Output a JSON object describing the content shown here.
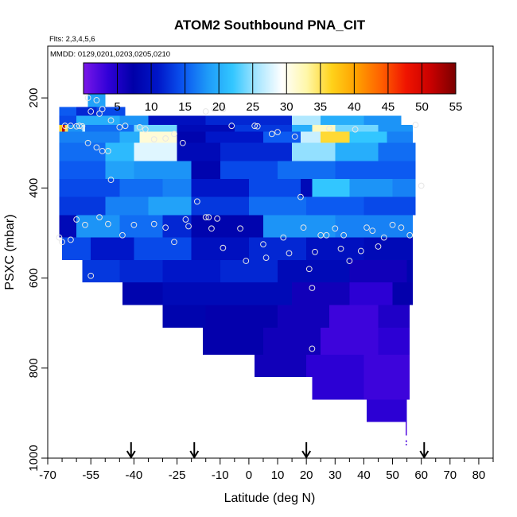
{
  "chart_data": {
    "type": "heatmap",
    "title": "ATOM2 Southbound PNA_CIT",
    "flights_note": "Flts: 2,3,4,5,6",
    "dates_note": "MMDD: 0129,0201,0203,0205,0210",
    "xlabel": "Latitude (deg N)",
    "ylabel": "PSXC (mbar)",
    "xlim": [
      -70,
      85
    ],
    "ylim": [
      1000,
      85
    ],
    "y_reversed": true,
    "x_major_ticks": [
      -70,
      -55,
      -40,
      -25,
      -10,
      0,
      10,
      20,
      30,
      40,
      50,
      60,
      70,
      80
    ],
    "x_minor_ticks": [
      -65,
      -60,
      -50,
      -45,
      -35,
      -30,
      -20,
      -15,
      -5,
      5,
      15,
      25,
      35,
      45,
      55,
      65,
      75,
      85
    ],
    "x_tick_labels": [
      "-70",
      "-55",
      "-40",
      "-25",
      "-10",
      "0",
      "10",
      "20",
      "30",
      "40",
      "50",
      "60",
      "70",
      "80"
    ],
    "y_ticks": [
      200,
      400,
      600,
      800,
      1000
    ],
    "y_tick_labels": [
      "200",
      "400",
      "600",
      "800",
      "1000"
    ],
    "colorbar": {
      "min": 0,
      "max": 55,
      "ticks": [
        5,
        10,
        15,
        20,
        25,
        30,
        35,
        40,
        45,
        50,
        55
      ],
      "tick_labels": [
        "5",
        "10",
        "15",
        "20",
        "25",
        "30",
        "35",
        "40",
        "45",
        "50",
        "55"
      ],
      "colors": [
        "#7a17e8",
        "#3000d8",
        "#0000a8",
        "#0016c8",
        "#0a54f0",
        "#1e9af8",
        "#32c6ff",
        "#a8e6ff",
        "#ffffff",
        "#fff7a8",
        "#ffd21a",
        "#ffa000",
        "#ff6000",
        "#f01400",
        "#c80000",
        "#7a0000"
      ]
    },
    "arrow_markers_latitude": [
      -41,
      -19,
      20,
      61
    ],
    "pressure_bins": [
      {
        "top": 170,
        "bottom": 220,
        "segments": [
          {
            "x0": -56,
            "x1": -50,
            "value": 19
          }
        ]
      },
      {
        "top": 220,
        "bottom": 240,
        "segments": [
          {
            "x0": -66,
            "x1": -60,
            "value": 15
          },
          {
            "x0": -60,
            "x1": -53,
            "value": 12
          },
          {
            "x0": -53,
            "x1": -43,
            "value": 14
          }
        ]
      },
      {
        "top": 240,
        "bottom": 260,
        "segments": [
          {
            "x0": -66,
            "x1": -60,
            "value": 14
          },
          {
            "x0": -60,
            "x1": -45,
            "value": 20
          },
          {
            "x0": -45,
            "x1": -35,
            "value": 18
          },
          {
            "x0": -35,
            "x1": -15,
            "value": 10
          },
          {
            "x0": -15,
            "x1": 15,
            "value": 12
          },
          {
            "x0": 15,
            "x1": 25,
            "value": 26
          },
          {
            "x0": 25,
            "x1": 40,
            "value": 20
          },
          {
            "x0": 40,
            "x1": 53,
            "value": 18
          }
        ]
      },
      {
        "top": 260,
        "bottom": 275,
        "segments": [
          {
            "x0": -66,
            "x1": -65,
            "value": 37
          },
          {
            "x0": -65,
            "x1": -64,
            "value": 52
          },
          {
            "x0": -64,
            "x1": -63,
            "value": 35
          },
          {
            "x0": -63,
            "x1": -58,
            "value": 18
          },
          {
            "x0": -58,
            "x1": -57,
            "value": 27
          },
          {
            "x0": -57,
            "x1": -40,
            "value": 16
          },
          {
            "x0": -40,
            "x1": -25,
            "value": 24
          },
          {
            "x0": -25,
            "x1": -5,
            "value": 9
          },
          {
            "x0": -5,
            "x1": 15,
            "value": 13
          },
          {
            "x0": 15,
            "x1": 22,
            "value": 20
          },
          {
            "x0": 22,
            "x1": 30,
            "value": 32
          },
          {
            "x0": 30,
            "x1": 45,
            "value": 24
          },
          {
            "x0": 45,
            "x1": 57,
            "value": 18
          }
        ]
      },
      {
        "top": 275,
        "bottom": 300,
        "segments": [
          {
            "x0": -66,
            "x1": -45,
            "value": 17
          },
          {
            "x0": -45,
            "x1": -38,
            "value": 20
          },
          {
            "x0": -38,
            "x1": -25,
            "value": 31
          },
          {
            "x0": -25,
            "x1": -15,
            "value": 8
          },
          {
            "x0": -15,
            "x1": 5,
            "value": 11
          },
          {
            "x0": 5,
            "x1": 18,
            "value": 15
          },
          {
            "x0": 18,
            "x1": 25,
            "value": 27
          },
          {
            "x0": 25,
            "x1": 35,
            "value": 36
          },
          {
            "x0": 35,
            "x1": 48,
            "value": 22
          },
          {
            "x0": 48,
            "x1": 57,
            "value": 17
          }
        ]
      },
      {
        "top": 300,
        "bottom": 340,
        "segments": [
          {
            "x0": -66,
            "x1": -50,
            "value": 16
          },
          {
            "x0": -50,
            "x1": -40,
            "value": 21
          },
          {
            "x0": -40,
            "x1": -25,
            "value": 28
          },
          {
            "x0": -25,
            "x1": -10,
            "value": 9
          },
          {
            "x0": -10,
            "x1": 15,
            "value": 12
          },
          {
            "x0": 15,
            "x1": 30,
            "value": 25
          },
          {
            "x0": 30,
            "x1": 45,
            "value": 20
          },
          {
            "x0": 45,
            "x1": 58,
            "value": 16
          }
        ]
      },
      {
        "top": 340,
        "bottom": 380,
        "segments": [
          {
            "x0": -66,
            "x1": -50,
            "value": 15
          },
          {
            "x0": -50,
            "x1": -40,
            "value": 19
          },
          {
            "x0": -40,
            "x1": -20,
            "value": 18
          },
          {
            "x0": -20,
            "x1": -10,
            "value": 8
          },
          {
            "x0": -10,
            "x1": 10,
            "value": 14
          },
          {
            "x0": 10,
            "x1": 30,
            "value": 16
          },
          {
            "x0": 30,
            "x1": 58,
            "value": 15
          }
        ]
      },
      {
        "top": 380,
        "bottom": 420,
        "segments": [
          {
            "x0": -66,
            "x1": -45,
            "value": 14
          },
          {
            "x0": -45,
            "x1": -30,
            "value": 16
          },
          {
            "x0": -30,
            "x1": -20,
            "value": 17
          },
          {
            "x0": -20,
            "x1": 0,
            "value": 11
          },
          {
            "x0": 0,
            "x1": 18,
            "value": 14
          },
          {
            "x0": 18,
            "x1": 22,
            "value": 9
          },
          {
            "x0": 22,
            "x1": 35,
            "value": 22
          },
          {
            "x0": 35,
            "x1": 50,
            "value": 18
          },
          {
            "x0": 50,
            "x1": 58,
            "value": 17
          }
        ]
      },
      {
        "top": 420,
        "bottom": 460,
        "segments": [
          {
            "x0": -66,
            "x1": -50,
            "value": 13
          },
          {
            "x0": -50,
            "x1": -35,
            "value": 17
          },
          {
            "x0": -35,
            "x1": -20,
            "value": 19
          },
          {
            "x0": -20,
            "x1": 0,
            "value": 13
          },
          {
            "x0": 0,
            "x1": 20,
            "value": 16
          },
          {
            "x0": 20,
            "x1": 40,
            "value": 15
          },
          {
            "x0": 40,
            "x1": 58,
            "value": 14
          }
        ]
      },
      {
        "top": 460,
        "bottom": 510,
        "segments": [
          {
            "x0": -66,
            "x1": -60,
            "value": 9
          },
          {
            "x0": -60,
            "x1": -45,
            "value": 18
          },
          {
            "x0": -45,
            "x1": -30,
            "value": 16
          },
          {
            "x0": -30,
            "x1": -20,
            "value": 12
          },
          {
            "x0": -20,
            "x1": 5,
            "value": 8
          },
          {
            "x0": 5,
            "x1": 30,
            "value": 18
          },
          {
            "x0": 30,
            "x1": 57,
            "value": 17
          }
        ]
      },
      {
        "top": 510,
        "bottom": 560,
        "segments": [
          {
            "x0": -65,
            "x1": -55,
            "value": 14
          },
          {
            "x0": -55,
            "x1": -40,
            "value": 11
          },
          {
            "x0": -40,
            "x1": -20,
            "value": 14
          },
          {
            "x0": -20,
            "x1": 0,
            "value": 10
          },
          {
            "x0": 0,
            "x1": 20,
            "value": 12
          },
          {
            "x0": 20,
            "x1": 40,
            "value": 10
          },
          {
            "x0": 40,
            "x1": 57,
            "value": 9
          }
        ]
      },
      {
        "top": 560,
        "bottom": 610,
        "segments": [
          {
            "x0": -58,
            "x1": -45,
            "value": 13
          },
          {
            "x0": -45,
            "x1": -30,
            "value": 12
          },
          {
            "x0": -30,
            "x1": -10,
            "value": 11
          },
          {
            "x0": -10,
            "x1": 10,
            "value": 12
          },
          {
            "x0": 10,
            "x1": 35,
            "value": 9
          },
          {
            "x0": 35,
            "x1": 55,
            "value": 6
          },
          {
            "x0": 55,
            "x1": 57,
            "value": 8
          }
        ]
      },
      {
        "top": 610,
        "bottom": 660,
        "segments": [
          {
            "x0": -44,
            "x1": -30,
            "value": 8
          },
          {
            "x0": -30,
            "x1": -10,
            "value": 9
          },
          {
            "x0": -10,
            "x1": 15,
            "value": 9
          },
          {
            "x0": 15,
            "x1": 35,
            "value": 6
          },
          {
            "x0": 35,
            "x1": 50,
            "value": 4
          },
          {
            "x0": 50,
            "x1": 57,
            "value": 7
          }
        ]
      },
      {
        "top": 660,
        "bottom": 710,
        "segments": [
          {
            "x0": -30,
            "x1": -15,
            "value": 8
          },
          {
            "x0": -15,
            "x1": 10,
            "value": 7
          },
          {
            "x0": 10,
            "x1": 28,
            "value": 6
          },
          {
            "x0": 28,
            "x1": 45,
            "value": 3
          },
          {
            "x0": 45,
            "x1": 56,
            "value": 5
          }
        ]
      },
      {
        "top": 710,
        "bottom": 770,
        "segments": [
          {
            "x0": -16,
            "x1": 5,
            "value": 7
          },
          {
            "x0": 5,
            "x1": 25,
            "value": 6
          },
          {
            "x0": 25,
            "x1": 45,
            "value": 3
          },
          {
            "x0": 45,
            "x1": 56,
            "value": 4
          }
        ]
      },
      {
        "top": 770,
        "bottom": 820,
        "segments": [
          {
            "x0": 2,
            "x1": 20,
            "value": 6
          },
          {
            "x0": 20,
            "x1": 40,
            "value": 4
          },
          {
            "x0": 40,
            "x1": 56,
            "value": 3
          }
        ]
      },
      {
        "top": 820,
        "bottom": 870,
        "segments": [
          {
            "x0": 22,
            "x1": 40,
            "value": 4
          },
          {
            "x0": 40,
            "x1": 56,
            "value": 3
          }
        ]
      },
      {
        "top": 870,
        "bottom": 920,
        "segments": [
          {
            "x0": 41,
            "x1": 55,
            "value": 4
          }
        ]
      },
      {
        "top": 920,
        "bottom": 950,
        "segments": [
          {
            "x0": 54.5,
            "x1": 55,
            "value": 2
          }
        ]
      },
      {
        "top": 960,
        "bottom": 965,
        "segments": [
          {
            "x0": 54.5,
            "x1": 55,
            "value": 2
          }
        ]
      },
      {
        "top": 968,
        "bottom": 972,
        "segments": [
          {
            "x0": 54.5,
            "x1": 55,
            "value": 2
          }
        ]
      }
    ],
    "sample_points": [
      [
        -56,
        200
      ],
      [
        -53,
        205
      ],
      [
        -51,
        225
      ],
      [
        -66,
        510
      ],
      [
        -65,
        520
      ],
      [
        -62,
        515
      ],
      [
        -60,
        470
      ],
      [
        -57,
        482
      ],
      [
        -55,
        595
      ],
      [
        -64,
        262
      ],
      [
        -62,
        262
      ],
      [
        -60,
        263
      ],
      [
        -59,
        262
      ],
      [
        -58,
        263
      ],
      [
        -56,
        300
      ],
      [
        -53,
        310
      ],
      [
        -51,
        318
      ],
      [
        -49,
        318
      ],
      [
        -55,
        230
      ],
      [
        -52,
        235
      ],
      [
        -48,
        250
      ],
      [
        -45,
        265
      ],
      [
        -43,
        262
      ],
      [
        -52,
        465
      ],
      [
        -49,
        480
      ],
      [
        -48,
        382
      ],
      [
        -44,
        505
      ],
      [
        -40,
        482
      ],
      [
        -38,
        265
      ],
      [
        -36,
        270
      ],
      [
        -33,
        292
      ],
      [
        -29,
        290
      ],
      [
        -26,
        280
      ],
      [
        -23,
        300
      ],
      [
        -33,
        480
      ],
      [
        -29,
        488
      ],
      [
        -26,
        520
      ],
      [
        -22,
        470
      ],
      [
        -21,
        485
      ],
      [
        -18,
        430
      ],
      [
        -15,
        465
      ],
      [
        -14,
        465
      ],
      [
        -13,
        490
      ],
      [
        -11,
        468
      ],
      [
        -15,
        230
      ],
      [
        -12,
        225
      ],
      [
        -11,
        222
      ],
      [
        -10,
        222
      ],
      [
        -9,
        225
      ],
      [
        -9,
        533
      ],
      [
        -6,
        262
      ],
      [
        -3,
        490
      ],
      [
        -1,
        562
      ],
      [
        2,
        262
      ],
      [
        3,
        263
      ],
      [
        5,
        525
      ],
      [
        6,
        555
      ],
      [
        8,
        280
      ],
      [
        10,
        276
      ],
      [
        12,
        510
      ],
      [
        14,
        545
      ],
      [
        16,
        286
      ],
      [
        18,
        420
      ],
      [
        19,
        488
      ],
      [
        21,
        580
      ],
      [
        22,
        622
      ],
      [
        22,
        757
      ],
      [
        23,
        542
      ],
      [
        25,
        505
      ],
      [
        27,
        505
      ],
      [
        28,
        268
      ],
      [
        30,
        490
      ],
      [
        32,
        535
      ],
      [
        33,
        505
      ],
      [
        35,
        562
      ],
      [
        37,
        270
      ],
      [
        39,
        540
      ],
      [
        41,
        488
      ],
      [
        43,
        495
      ],
      [
        45,
        530
      ],
      [
        47,
        510
      ],
      [
        50,
        482
      ],
      [
        53,
        488
      ],
      [
        56,
        505
      ],
      [
        58,
        260
      ],
      [
        60,
        395
      ]
    ]
  }
}
